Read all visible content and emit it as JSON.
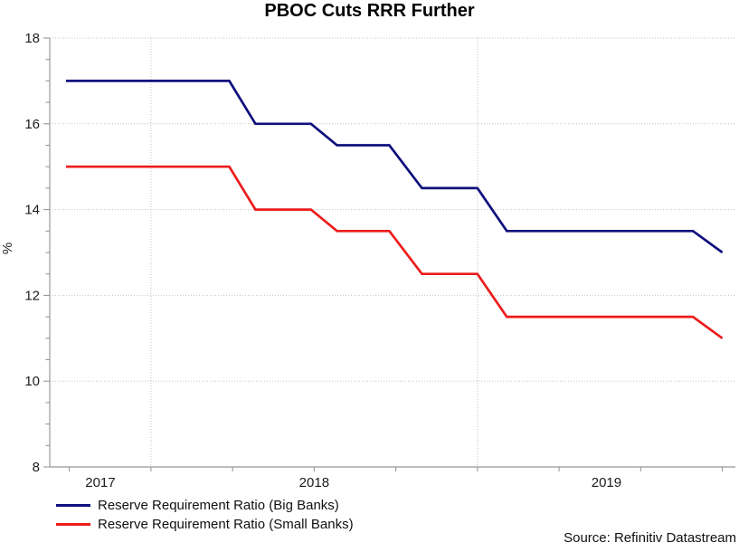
{
  "title": "PBOC Cuts RRR Further",
  "source": "Source: Refinitiv Datastream",
  "colors": {
    "big_banks_line": "#10107E",
    "small_banks_line": "#EC1C1C",
    "gridline": "#C3C3C3",
    "axis": "#A9A9A9",
    "text": "#1C1C1C"
  },
  "chart_data": {
    "type": "line",
    "title": "PBOC Cuts RRR Further",
    "ylabel": "%",
    "xlabel": "",
    "ylim": [
      8,
      18
    ],
    "xlim": [
      2017.69,
      2019.79
    ],
    "y_ticks": [
      18,
      16,
      14,
      12,
      10,
      8
    ],
    "y_tick_labels": [
      "18",
      "16",
      "14",
      "12",
      "10",
      "8"
    ],
    "y_minor_tick_step": 0.5,
    "x_tick_start": 2017.75,
    "x_tick_step": 0.25,
    "x_gridlines": [
      2018,
      2019
    ],
    "x_year_labels": [
      "2017",
      "2018",
      "2019"
    ],
    "grid": "dotted, horizontal at labeled y ticks, vertical at year starts",
    "legend_position": "bottom-left",
    "series": [
      {
        "name": "Reserve Requirement Ratio (Big Banks)",
        "color": "#10107E",
        "points": [
          [
            2017.74,
            17
          ],
          [
            2018.24,
            17
          ],
          [
            2018.32,
            16
          ],
          [
            2018.49,
            16
          ],
          [
            2018.57,
            15.5
          ],
          [
            2018.73,
            15.5
          ],
          [
            2018.83,
            14.5
          ],
          [
            2019.0,
            14.5
          ],
          [
            2019.09,
            13.5
          ],
          [
            2019.66,
            13.5
          ],
          [
            2019.75,
            13
          ]
        ]
      },
      {
        "name": "Reserve Requirement Ratio (Small Banks)",
        "color": "#EC1C1C",
        "points": [
          [
            2017.74,
            15
          ],
          [
            2018.24,
            15
          ],
          [
            2018.32,
            14
          ],
          [
            2018.49,
            14
          ],
          [
            2018.57,
            13.5
          ],
          [
            2018.73,
            13.5
          ],
          [
            2018.83,
            12.5
          ],
          [
            2019.0,
            12.5
          ],
          [
            2019.09,
            11.5
          ],
          [
            2019.66,
            11.5
          ],
          [
            2019.75,
            11
          ]
        ]
      }
    ]
  }
}
